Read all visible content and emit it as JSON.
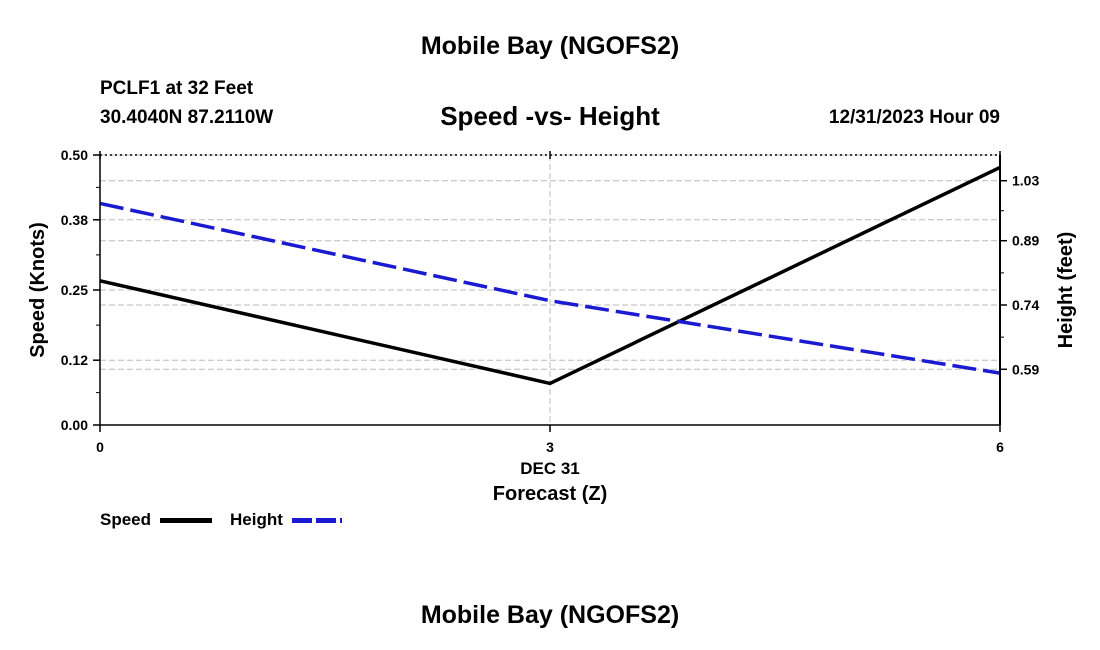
{
  "header": {
    "title": "Mobile Bay (NGOFS2)",
    "station": "PCLF1 at 32 Feet",
    "coords": "30.4040N  87.2110W",
    "chart_title": "Speed -vs- Height",
    "datetime": "12/31/2023 Hour 09"
  },
  "footer": {
    "title": "Mobile Bay (NGOFS2)"
  },
  "legend": {
    "speed": "Speed",
    "height": "Height"
  },
  "colors": {
    "speed": "#000000",
    "height": "#1a1ad0",
    "grid": "#bbbbbb"
  },
  "chart_data": {
    "type": "line",
    "title": "Speed -vs- Height",
    "xlabel": "Forecast (Z)",
    "x_sublabel": "DEC 31",
    "ylabel_left": "Speed (Knots)",
    "ylabel_right": "Height (feet)",
    "xlim": [
      0,
      6
    ],
    "x_ticks": [
      0,
      3,
      6
    ],
    "x_tick_labels": [
      "0",
      "3",
      "6"
    ],
    "ylim_left": [
      0,
      0.5
    ],
    "y_ticks_left": [
      0.0,
      0.12,
      0.25,
      0.38,
      0.5
    ],
    "y_tick_labels_left": [
      "0.00",
      "0.12",
      "0.25",
      "0.38",
      "0.50"
    ],
    "ylim_right": [
      0.46,
      1.09
    ],
    "y_ticks_right": [
      0.59,
      0.74,
      0.89,
      1.03
    ],
    "y_tick_labels_right": [
      "0.59",
      "0.74",
      "0.89",
      "1.03"
    ],
    "grid": true,
    "legend_position": "bottom-left",
    "series": [
      {
        "name": "Speed",
        "axis": "left",
        "style": "solid",
        "x": [
          0,
          3,
          6
        ],
        "values": [
          0.267,
          0.077,
          0.477
        ]
      },
      {
        "name": "Height",
        "axis": "right",
        "style": "dashed",
        "x": [
          0,
          3,
          6
        ],
        "values": [
          0.977,
          0.75,
          0.581
        ]
      }
    ]
  }
}
